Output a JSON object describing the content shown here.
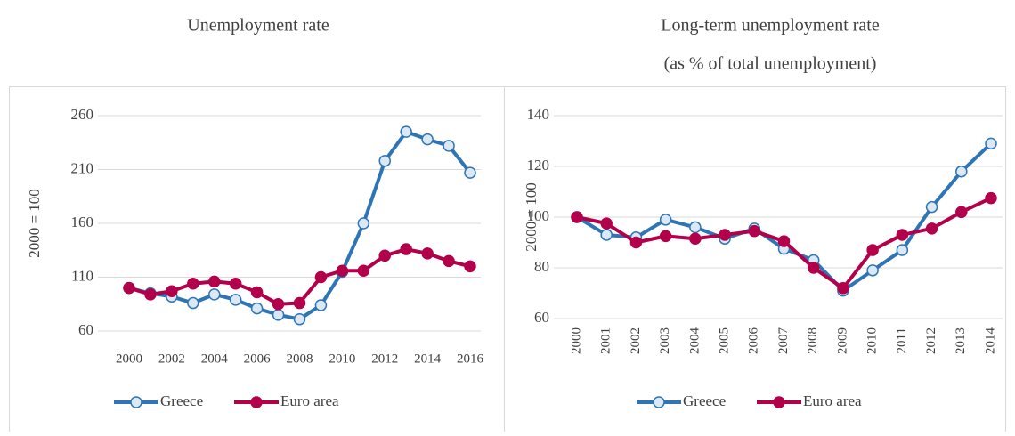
{
  "chart_data": [
    {
      "type": "line",
      "title": "Unemployment rate",
      "y_label": "2000 = 100",
      "categories": [
        "2000",
        null,
        "2002",
        null,
        "2004",
        null,
        "2006",
        null,
        "2008",
        null,
        "2010",
        null,
        "2012",
        null,
        "2014",
        null,
        "2016"
      ],
      "ylim": [
        60,
        260
      ],
      "yticks": [
        60,
        110,
        160,
        210,
        260
      ],
      "grid": true,
      "series": [
        {
          "name": "Greece",
          "color": "#2e75b6",
          "values": [
            100,
            95,
            92,
            86,
            94,
            89,
            81,
            75,
            71,
            84,
            115,
            160,
            218,
            245,
            238,
            232,
            207
          ]
        },
        {
          "name": "Euro area",
          "color": "#b3004a",
          "values": [
            100,
            94,
            97,
            104,
            106,
            104,
            96,
            85,
            86,
            110,
            116,
            116,
            130,
            136,
            132,
            125,
            120
          ]
        }
      ]
    },
    {
      "type": "line",
      "title": "Long-term unemployment rate",
      "subtitle": "(as % of total unemployment)",
      "y_label": "2000 = 100",
      "categories": [
        "2000",
        "2001",
        "2002",
        "2003",
        "2004",
        "2005",
        "2006",
        "2007",
        "2008",
        "2009",
        "2010",
        "2011",
        "2012",
        "2013",
        "2014"
      ],
      "ylim": [
        60,
        140
      ],
      "yticks": [
        60,
        80,
        100,
        120,
        140
      ],
      "grid": true,
      "series": [
        {
          "name": "Greece",
          "color": "#2e75b6",
          "values": [
            100,
            93,
            92,
            99,
            96,
            91.5,
            95.5,
            87.5,
            83,
            71,
            79,
            87,
            104,
            118,
            129
          ]
        },
        {
          "name": "Euro area",
          "color": "#b3004a",
          "values": [
            100,
            97.5,
            90,
            92.5,
            91.5,
            93,
            94.5,
            90.5,
            80,
            72,
            87,
            93,
            95.5,
            102,
            107.5
          ]
        }
      ]
    }
  ]
}
